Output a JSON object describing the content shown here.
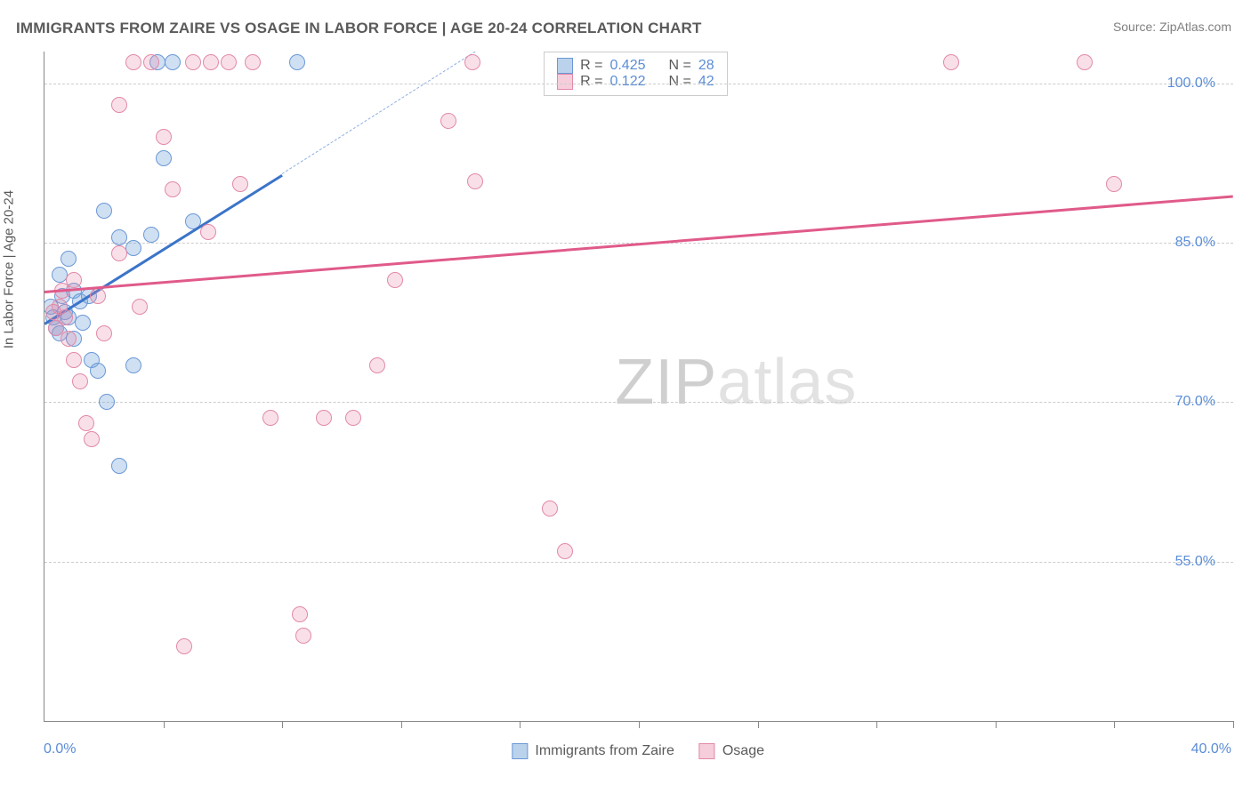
{
  "title": "IMMIGRANTS FROM ZAIRE VS OSAGE IN LABOR FORCE | AGE 20-24 CORRELATION CHART",
  "source": "Source: ZipAtlas.com",
  "y_axis_label": "In Labor Force | Age 20-24",
  "watermark_a": "ZIP",
  "watermark_b": "atlas",
  "chart": {
    "type": "scatter",
    "x_min": 0.0,
    "x_max": 40.0,
    "x_min_label": "0.0%",
    "x_max_label": "40.0%",
    "x_ticks": [
      4,
      8,
      12,
      16,
      20,
      24,
      28,
      32,
      36,
      40
    ],
    "y_min": 40.0,
    "y_max": 103.0,
    "y_ticks": [
      {
        "v": 100.0,
        "label": "100.0%"
      },
      {
        "v": 85.0,
        "label": "85.0%"
      },
      {
        "v": 70.0,
        "label": "70.0%"
      },
      {
        "v": 55.0,
        "label": "55.0%"
      }
    ],
    "background_color": "#ffffff",
    "grid_color": "#cccccc",
    "grid_dash": true,
    "marker_radius": 9,
    "series": [
      {
        "name": "Immigrants from Zaire",
        "color_fill": "rgba(120,165,220,0.35)",
        "color_stroke": "#6a98d6",
        "r": 0.425,
        "n": 28,
        "trend": {
          "x1": 0.0,
          "y1": 77.5,
          "x2_solid": 8.0,
          "y2_solid": 91.5,
          "x2_dash": 14.5,
          "y2_dash": 103.0,
          "color": "#3b74c9"
        },
        "points": [
          [
            0.2,
            79.0
          ],
          [
            0.3,
            78.0
          ],
          [
            0.4,
            77.0
          ],
          [
            0.5,
            82.0
          ],
          [
            0.5,
            76.5
          ],
          [
            0.6,
            80.0
          ],
          [
            0.7,
            78.5
          ],
          [
            0.8,
            83.5
          ],
          [
            0.8,
            78.0
          ],
          [
            1.0,
            80.5
          ],
          [
            1.0,
            76.0
          ],
          [
            1.2,
            79.5
          ],
          [
            1.3,
            77.5
          ],
          [
            1.5,
            80.0
          ],
          [
            1.6,
            74.0
          ],
          [
            1.8,
            73.0
          ],
          [
            2.0,
            88.0
          ],
          [
            2.1,
            70.0
          ],
          [
            2.5,
            85.5
          ],
          [
            2.5,
            64.0
          ],
          [
            3.0,
            84.5
          ],
          [
            3.0,
            73.5
          ],
          [
            3.6,
            85.8
          ],
          [
            3.8,
            102.0
          ],
          [
            4.0,
            93.0
          ],
          [
            4.3,
            102.0
          ],
          [
            5.0,
            87.0
          ],
          [
            8.5,
            102.0
          ]
        ]
      },
      {
        "name": "Osage",
        "color_fill": "rgba(230,130,165,0.25)",
        "color_stroke": "#e289a9",
        "r": 0.122,
        "n": 42,
        "trend": {
          "x1": 0.0,
          "y1": 80.5,
          "x2_solid": 40.0,
          "y2_solid": 89.5,
          "color": "#e05a8a"
        },
        "points": [
          [
            0.3,
            78.5
          ],
          [
            0.4,
            77.0
          ],
          [
            0.5,
            79.0
          ],
          [
            0.6,
            80.5
          ],
          [
            0.7,
            78.0
          ],
          [
            0.8,
            76.0
          ],
          [
            1.0,
            74.0
          ],
          [
            1.0,
            81.5
          ],
          [
            1.2,
            72.0
          ],
          [
            1.4,
            68.0
          ],
          [
            1.6,
            66.5
          ],
          [
            1.8,
            80.0
          ],
          [
            2.0,
            76.5
          ],
          [
            2.5,
            98.0
          ],
          [
            2.5,
            84.0
          ],
          [
            3.0,
            102.0
          ],
          [
            3.2,
            79.0
          ],
          [
            3.6,
            102.0
          ],
          [
            4.0,
            95.0
          ],
          [
            4.3,
            90.0
          ],
          [
            4.7,
            47.0
          ],
          [
            5.0,
            102.0
          ],
          [
            5.5,
            86.0
          ],
          [
            5.6,
            102.0
          ],
          [
            6.2,
            102.0
          ],
          [
            6.6,
            90.5
          ],
          [
            7.0,
            102.0
          ],
          [
            7.6,
            68.5
          ],
          [
            8.6,
            50.0
          ],
          [
            8.7,
            48.0
          ],
          [
            9.4,
            68.5
          ],
          [
            10.4,
            68.5
          ],
          [
            11.2,
            73.5
          ],
          [
            11.8,
            81.5
          ],
          [
            13.6,
            96.5
          ],
          [
            14.4,
            102.0
          ],
          [
            14.5,
            90.8
          ],
          [
            17.0,
            60.0
          ],
          [
            17.5,
            56.0
          ],
          [
            30.5,
            102.0
          ],
          [
            35.0,
            102.0
          ],
          [
            36.0,
            90.5
          ]
        ]
      }
    ]
  },
  "legend_top": {
    "rows": [
      {
        "swatch": "blue",
        "r_label": "R =",
        "r_val": "0.425",
        "n_label": "N =",
        "n_val": "28"
      },
      {
        "swatch": "pink",
        "r_label": "R =",
        "r_val": " 0.122",
        "n_label": "N =",
        "n_val": "42"
      }
    ]
  },
  "legend_bottom": {
    "items": [
      {
        "swatch": "blue",
        "label": "Immigrants from Zaire"
      },
      {
        "swatch": "pink",
        "label": "Osage"
      }
    ]
  }
}
